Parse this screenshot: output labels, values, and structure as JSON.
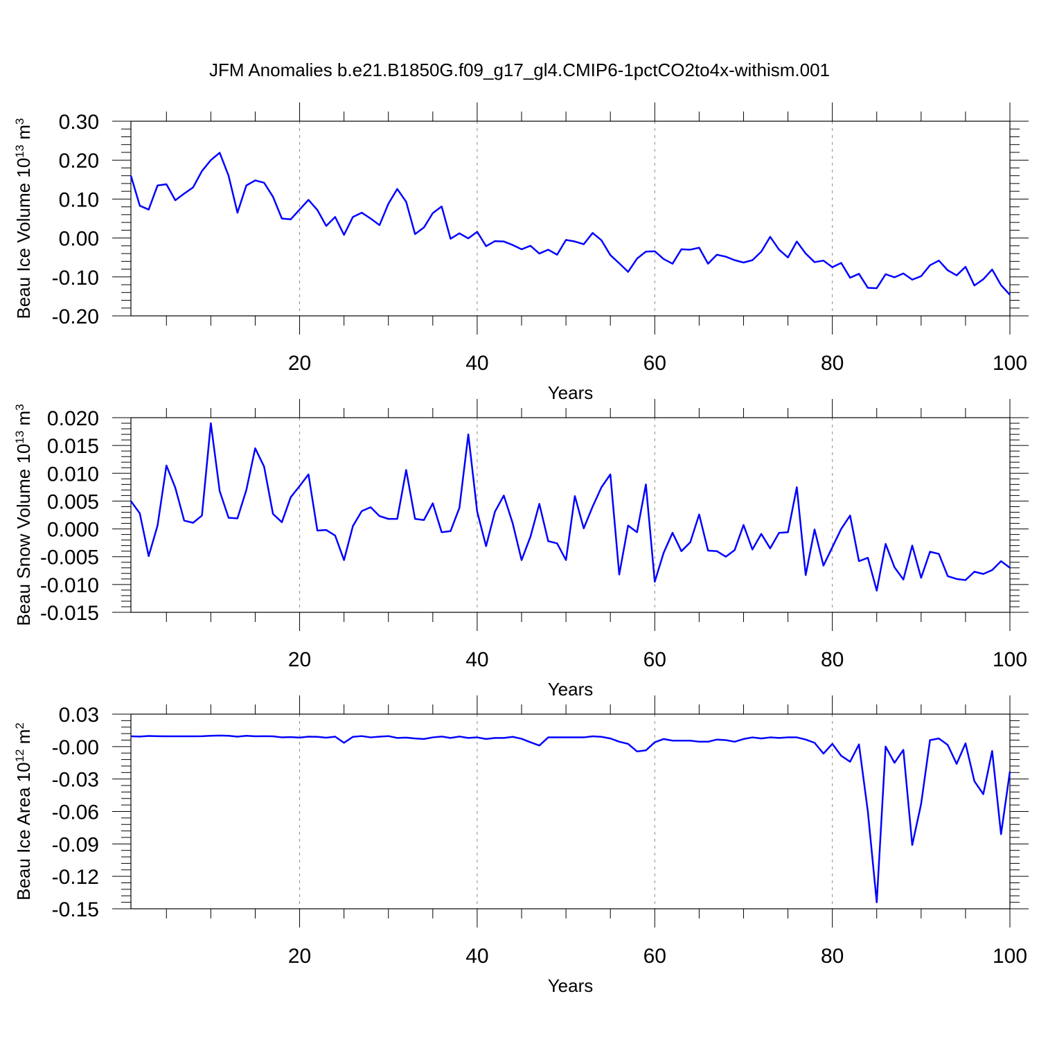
{
  "title": "JFM Anomalies b.e21.B1850G.f09_g17_gl4.CMIP6-1pctCO2to4x-withism.001",
  "colors": {
    "line": "#0000ff",
    "axis": "#000000",
    "grid": "#888888"
  },
  "chart_data": [
    {
      "type": "line",
      "ylabel": "Beau Ice Volume",
      "yunit_base": "10",
      "yunit_exp": "13",
      "yunit_tail": "m",
      "yunit_tail_exp": "3",
      "xlabel": "Years",
      "xlim": [
        1,
        100
      ],
      "ylim": [
        -0.2,
        0.3
      ],
      "x_ticks": [
        20,
        40,
        60,
        80,
        100
      ],
      "x_tick_labels": [
        "20",
        "40",
        "60",
        "80",
        "100"
      ],
      "y_ticks": [
        0.3,
        0.2,
        0.1,
        0.0,
        -0.1,
        -0.2
      ],
      "y_tick_labels": [
        "0.30",
        "0.20",
        "0.10",
        "0.00",
        "-0.10",
        "-0.20"
      ],
      "grid_x": [
        20,
        40,
        60,
        80
      ],
      "x": [
        1,
        2,
        3,
        4,
        5,
        6,
        7,
        8,
        9,
        10,
        11,
        12,
        13,
        14,
        15,
        16,
        17,
        18,
        19,
        20,
        21,
        22,
        23,
        24,
        25,
        26,
        27,
        28,
        29,
        30,
        31,
        32,
        33,
        34,
        35,
        36,
        37,
        38,
        39,
        40,
        41,
        42,
        43,
        44,
        45,
        46,
        47,
        48,
        49,
        50,
        51,
        52,
        53,
        54,
        55,
        56,
        57,
        58,
        59,
        60,
        61,
        62,
        63,
        64,
        65,
        66,
        67,
        68,
        69,
        70,
        71,
        72,
        73,
        74,
        75,
        76,
        77,
        78,
        79,
        80,
        81,
        82,
        83,
        84,
        85,
        86,
        87,
        88,
        89,
        90,
        91,
        92,
        93,
        94,
        95,
        96,
        97,
        98,
        99,
        100
      ],
      "values": [
        0.16,
        0.083,
        0.073,
        0.135,
        0.138,
        0.097,
        0.114,
        0.13,
        0.172,
        0.2,
        0.219,
        0.16,
        0.065,
        0.135,
        0.148,
        0.142,
        0.106,
        0.05,
        0.048,
        0.073,
        0.098,
        0.072,
        0.031,
        0.054,
        0.008,
        0.054,
        0.065,
        0.05,
        0.033,
        0.088,
        0.126,
        0.093,
        0.01,
        0.027,
        0.064,
        0.081,
        -0.002,
        0.012,
        -0.001,
        0.016,
        -0.021,
        -0.008,
        -0.009,
        -0.018,
        -0.029,
        -0.02,
        -0.04,
        -0.03,
        -0.043,
        -0.005,
        -0.009,
        -0.016,
        0.013,
        -0.006,
        -0.044,
        -0.065,
        -0.087,
        -0.053,
        -0.035,
        -0.034,
        -0.054,
        -0.066,
        -0.029,
        -0.03,
        -0.025,
        -0.066,
        -0.043,
        -0.048,
        -0.057,
        -0.063,
        -0.057,
        -0.035,
        0.003,
        -0.03,
        -0.05,
        -0.009,
        -0.04,
        -0.062,
        -0.058,
        -0.075,
        -0.064,
        -0.102,
        -0.092,
        -0.128,
        -0.129,
        -0.093,
        -0.101,
        -0.091,
        -0.107,
        -0.098,
        -0.07,
        -0.058,
        -0.083,
        -0.096,
        -0.074,
        -0.122,
        -0.106,
        -0.081,
        -0.121,
        -0.146
      ]
    },
    {
      "type": "line",
      "ylabel": "Beau Snow Volume",
      "yunit_base": "10",
      "yunit_exp": "13",
      "yunit_tail": "m",
      "yunit_tail_exp": "3",
      "xlabel": "Years",
      "xlim": [
        1,
        100
      ],
      "ylim": [
        -0.015,
        0.02
      ],
      "x_ticks": [
        20,
        40,
        60,
        80,
        100
      ],
      "x_tick_labels": [
        "20",
        "40",
        "60",
        "80",
        "100"
      ],
      "y_ticks": [
        0.02,
        0.015,
        0.01,
        0.005,
        0.0,
        -0.005,
        -0.01,
        -0.015
      ],
      "y_tick_labels": [
        "0.020",
        "0.015",
        "0.010",
        "0.005",
        "0.000",
        "-0.005",
        "-0.010",
        "-0.015"
      ],
      "grid_x": [
        20,
        40,
        60,
        80
      ],
      "x": [
        1,
        2,
        3,
        4,
        5,
        6,
        7,
        8,
        9,
        10,
        11,
        12,
        13,
        14,
        15,
        16,
        17,
        18,
        19,
        20,
        21,
        22,
        23,
        24,
        25,
        26,
        27,
        28,
        29,
        30,
        31,
        32,
        33,
        34,
        35,
        36,
        37,
        38,
        39,
        40,
        41,
        42,
        43,
        44,
        45,
        46,
        47,
        48,
        49,
        50,
        51,
        52,
        53,
        54,
        55,
        56,
        57,
        58,
        59,
        60,
        61,
        62,
        63,
        64,
        65,
        66,
        67,
        68,
        69,
        70,
        71,
        72,
        73,
        74,
        75,
        76,
        77,
        78,
        79,
        80,
        81,
        82,
        83,
        84,
        85,
        86,
        87,
        88,
        89,
        90,
        91,
        92,
        93,
        94,
        95,
        96,
        97,
        98,
        99,
        100
      ],
      "values": [
        0.005,
        0.0028,
        -0.0049,
        0.0006,
        0.0114,
        0.0074,
        0.0015,
        0.0011,
        0.0024,
        0.019,
        0.0068,
        0.002,
        0.0019,
        0.007,
        0.0145,
        0.0112,
        0.0027,
        0.0012,
        0.0057,
        0.0077,
        0.0098,
        -0.0003,
        -0.0002,
        -0.0012,
        -0.0056,
        0.0005,
        0.0032,
        0.0039,
        0.0023,
        0.0018,
        0.0018,
        0.0106,
        0.0018,
        0.0016,
        0.0046,
        -0.0006,
        -0.0004,
        0.0038,
        0.017,
        0.0031,
        -0.0031,
        0.0031,
        0.006,
        0.001,
        -0.0056,
        -0.0014,
        0.0045,
        -0.0022,
        -0.0026,
        -0.0056,
        0.0059,
        0.0001,
        0.004,
        0.0075,
        0.0098,
        -0.0082,
        0.0006,
        -0.0006,
        0.008,
        -0.0095,
        -0.0043,
        -0.0007,
        -0.004,
        -0.0024,
        0.0026,
        -0.0039,
        -0.004,
        -0.005,
        -0.0038,
        0.0007,
        -0.0037,
        -0.0009,
        -0.0035,
        -0.0007,
        -0.0006,
        0.0075,
        -0.0083,
        -0.0001,
        -0.0066,
        -0.0033,
        0.0,
        0.0024,
        -0.0058,
        -0.0052,
        -0.0111,
        -0.0027,
        -0.0069,
        -0.0091,
        -0.003,
        -0.0088,
        -0.0041,
        -0.0045,
        -0.0085,
        -0.009,
        -0.0092,
        -0.0077,
        -0.0081,
        -0.0074,
        -0.0058,
        -0.007
      ]
    },
    {
      "type": "line",
      "ylabel": "Beau Ice Area",
      "yunit_base": "10",
      "yunit_exp": "12",
      "yunit_tail": "m",
      "yunit_tail_exp": "2",
      "xlabel": "Years",
      "xlim": [
        1,
        100
      ],
      "ylim": [
        -0.15,
        0.03
      ],
      "x_ticks": [
        20,
        40,
        60,
        80,
        100
      ],
      "x_tick_labels": [
        "20",
        "40",
        "60",
        "80",
        "100"
      ],
      "y_ticks": [
        0.03,
        0.0,
        -0.03,
        -0.06,
        -0.09,
        -0.12,
        -0.15
      ],
      "y_tick_labels": [
        "0.03",
        "-0.00",
        "-0.03",
        "-0.06",
        "-0.09",
        "-0.12",
        "-0.15"
      ],
      "grid_x": [
        20,
        40,
        60,
        80
      ],
      "x": [
        1,
        2,
        3,
        4,
        5,
        6,
        7,
        8,
        9,
        10,
        11,
        12,
        13,
        14,
        15,
        16,
        17,
        18,
        19,
        20,
        21,
        22,
        23,
        24,
        25,
        26,
        27,
        28,
        29,
        30,
        31,
        32,
        33,
        34,
        35,
        36,
        37,
        38,
        39,
        40,
        41,
        42,
        43,
        44,
        45,
        46,
        47,
        48,
        49,
        50,
        51,
        52,
        53,
        54,
        55,
        56,
        57,
        58,
        59,
        60,
        61,
        62,
        63,
        64,
        65,
        66,
        67,
        68,
        69,
        70,
        71,
        72,
        73,
        74,
        75,
        76,
        77,
        78,
        79,
        80,
        81,
        82,
        83,
        84,
        85,
        86,
        87,
        88,
        89,
        90,
        91,
        92,
        93,
        94,
        95,
        96,
        97,
        98,
        99,
        100
      ],
      "values": [
        0.0095,
        0.0093,
        0.0098,
        0.0096,
        0.0095,
        0.0095,
        0.0095,
        0.0095,
        0.0096,
        0.01,
        0.0102,
        0.01,
        0.0092,
        0.01,
        0.0095,
        0.0096,
        0.0095,
        0.0085,
        0.0088,
        0.0083,
        0.0092,
        0.009,
        0.0082,
        0.0092,
        0.0035,
        0.009,
        0.0097,
        0.0085,
        0.0092,
        0.0097,
        0.008,
        0.0083,
        0.0075,
        0.007,
        0.0085,
        0.0093,
        0.008,
        0.0093,
        0.008,
        0.0085,
        0.007,
        0.008,
        0.008,
        0.009,
        0.0072,
        0.004,
        0.001,
        0.0085,
        0.0085,
        0.0085,
        0.0085,
        0.0085,
        0.0095,
        0.009,
        0.0075,
        0.0045,
        0.0025,
        -0.0045,
        -0.0035,
        0.004,
        0.007,
        0.0055,
        0.0055,
        0.0055,
        0.0045,
        0.0045,
        0.0065,
        0.006,
        0.0045,
        0.007,
        0.0085,
        0.0075,
        0.0085,
        0.008,
        0.0085,
        0.0085,
        0.0065,
        0.0035,
        -0.0065,
        0.0025,
        -0.0085,
        -0.014,
        0.002,
        -0.06,
        -0.144,
        0.0,
        -0.015,
        -0.003,
        -0.091,
        -0.053,
        0.006,
        0.0075,
        0.0015,
        -0.016,
        0.003,
        -0.032,
        -0.044,
        -0.004,
        -0.081,
        -0.023
      ]
    }
  ]
}
